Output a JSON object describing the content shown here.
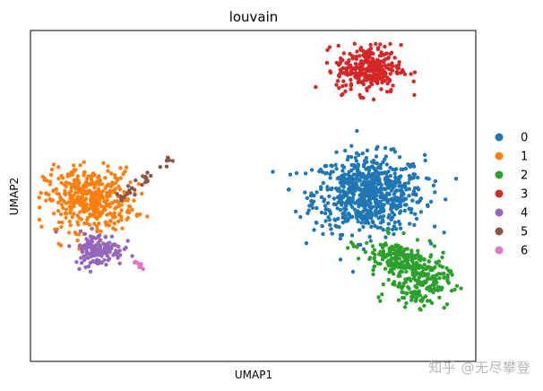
{
  "chart_data": {
    "type": "scatter",
    "title": "louvain",
    "xlabel": "UMAP1",
    "ylabel": "UMAP2",
    "xlim": [
      -8.5,
      16.5
    ],
    "ylim": [
      -4.5,
      13.5
    ],
    "grid": false,
    "legend_placement": "right",
    "legend_entries": [
      "0",
      "1",
      "2",
      "3",
      "4",
      "5",
      "6"
    ],
    "colors": [
      "#1f77b4",
      "#ff7f0e",
      "#2ca02c",
      "#d62728",
      "#9467bd",
      "#8c564b",
      "#e377c2"
    ],
    "clusters": [
      {
        "category": "0",
        "color": "#1f77b4",
        "n": 720,
        "blobs": [
          {
            "cx": 10.5,
            "cy": 4.6,
            "sx": 1.55,
            "sy": 1.05,
            "rot": 0,
            "w": 1
          }
        ]
      },
      {
        "category": "1",
        "color": "#ff7f0e",
        "n": 420,
        "blobs": [
          {
            "cx": -5.2,
            "cy": 4.3,
            "sx": 1.25,
            "sy": 0.85,
            "rot": 0,
            "w": 1
          }
        ]
      },
      {
        "category": "2",
        "color": "#2ca02c",
        "n": 360,
        "blobs": [
          {
            "cx": 12.4,
            "cy": 0.9,
            "sx": 1.2,
            "sy": 0.55,
            "rot": -20,
            "w": 1
          },
          {
            "cx": 13.3,
            "cy": -0.3,
            "sx": 0.85,
            "sy": 0.6,
            "rot": 0,
            "w": 0.6
          }
        ]
      },
      {
        "category": "3",
        "color": "#d62728",
        "n": 300,
        "blobs": [
          {
            "cx": 10.5,
            "cy": 11.4,
            "sx": 0.9,
            "sy": 0.65,
            "rot": 0,
            "w": 1
          }
        ]
      },
      {
        "category": "4",
        "color": "#9467bd",
        "n": 150,
        "blobs": [
          {
            "cx": -4.7,
            "cy": 1.6,
            "sx": 0.7,
            "sy": 0.45,
            "rot": 0,
            "w": 1
          }
        ]
      },
      {
        "category": "5",
        "color": "#8c564b",
        "n": 32,
        "line": {
          "x1": -3.5,
          "y1": 4.3,
          "x2": -0.6,
          "y2": 6.6,
          "jitter": 0.12
        }
      },
      {
        "category": "6",
        "color": "#e377c2",
        "n": 12,
        "line": {
          "x1": -2.7,
          "y1": 1.05,
          "x2": -2.2,
          "y2": 0.55,
          "jitter": 0.08
        }
      }
    ]
  },
  "watermark": "知乎 @无尽攀登"
}
